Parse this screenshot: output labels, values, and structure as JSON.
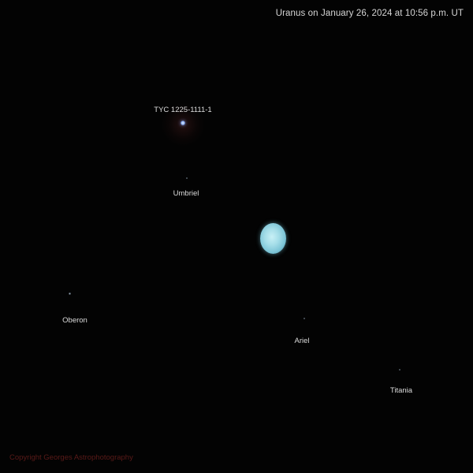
{
  "caption": "Uranus on January 26, 2024 at 10:56 p.m. UT",
  "labels": {
    "star": "TYC 1225-1111-1",
    "umbriel": "Umbriel",
    "oberon": "Oberon",
    "ariel": "Ariel",
    "titania": "Titania"
  },
  "copyright": "Copyright Georges Astrophotography",
  "colors": {
    "background": "#030303",
    "planet": "#a4dde8",
    "text": "#dcdcdc",
    "copyright": "#5a1a18"
  }
}
